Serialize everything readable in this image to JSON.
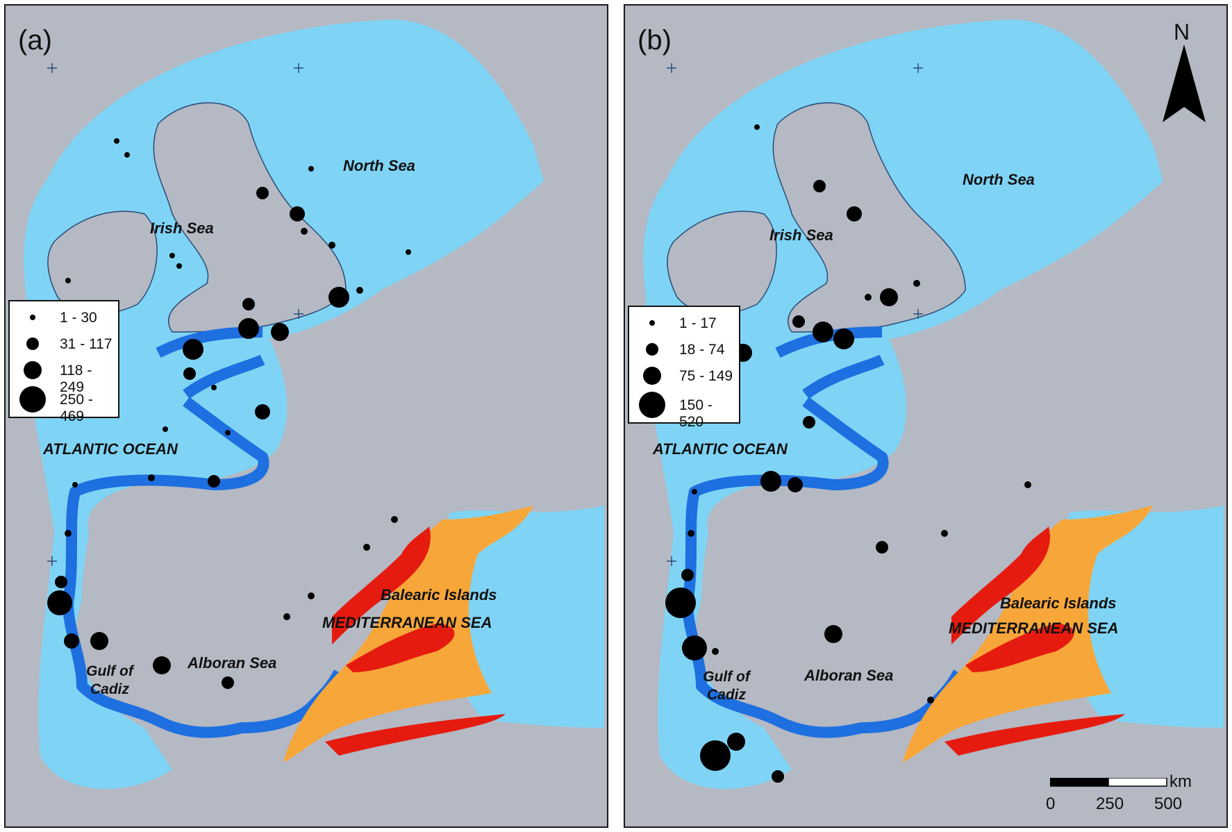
{
  "panels": [
    {
      "label": "(a)",
      "legend": [
        "1 - 30",
        "31 - 117",
        "118 - 249",
        "250 - 469"
      ]
    },
    {
      "label": "(b)",
      "legend": [
        "1 - 17",
        "18 - 74",
        "75 - 149",
        "150 - 520"
      ]
    }
  ],
  "places": {
    "north_sea": "North Sea",
    "irish_sea": "Irish Sea",
    "atlantic": "ATLANTIC OCEAN",
    "balearic": "Balearic Islands",
    "mediterranean": "MEDITERRANEAN SEA",
    "gulf_line1": "Gulf of",
    "gulf_line2": "Cadiz",
    "alboran": "Alboran Sea"
  },
  "north_arrow": "N",
  "scale": {
    "unit": "km",
    "ticks": [
      "0",
      "250",
      "500"
    ]
  },
  "colors": {
    "land": "#b4b9c3",
    "sea": "#7fd4f5",
    "coastal_zone": "#1e6fe0",
    "med_zone_red": "#e61b10",
    "med_zone_orange": "#f7a639",
    "points": "#000000"
  }
}
